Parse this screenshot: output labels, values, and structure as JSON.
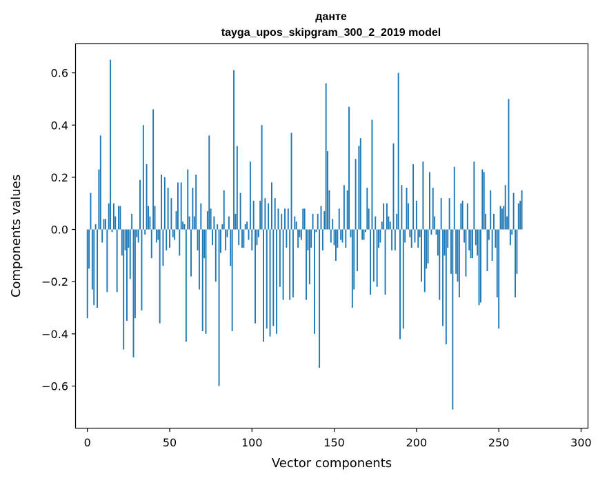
{
  "chart_data": {
    "type": "bar",
    "title": "данте",
    "subtitle": "tayga_upos_skipgram_300_2_2019 model",
    "xlabel": "Vector components",
    "ylabel": "Components values",
    "xlim": [
      -7,
      304
    ],
    "ylim": [
      -0.76,
      0.71
    ],
    "xticks": [
      0,
      50,
      100,
      150,
      200,
      250,
      300
    ],
    "xtick_labels": [
      "0",
      "50",
      "100",
      "150",
      "200",
      "250",
      "300"
    ],
    "yticks": [
      -0.6,
      -0.4,
      -0.2,
      0.0,
      0.2,
      0.4,
      0.6
    ],
    "ytick_labels": [
      "−0.6",
      "−0.4",
      "−0.2",
      "0.0",
      "0.2",
      "0.4",
      "0.6"
    ],
    "grid": false,
    "bar_color": "#1f77b4",
    "values": [
      -0.34,
      -0.15,
      0.14,
      -0.23,
      -0.29,
      0.02,
      -0.3,
      0.23,
      0.36,
      -0.05,
      0.04,
      0.04,
      -0.24,
      0.1,
      0.65,
      -0.01,
      0.1,
      0.05,
      -0.24,
      0.09,
      0.09,
      -0.1,
      -0.46,
      -0.08,
      -0.35,
      -0.07,
      -0.19,
      0.06,
      -0.49,
      -0.34,
      -0.03,
      -0.05,
      0.19,
      -0.31,
      0.4,
      -0.02,
      0.25,
      0.09,
      0.05,
      -0.11,
      0.46,
      0.09,
      -0.05,
      -0.04,
      -0.36,
      0.21,
      -0.14,
      0.2,
      -0.08,
      0.16,
      -0.07,
      0.12,
      -0.03,
      -0.04,
      0.07,
      0.18,
      -0.1,
      0.18,
      0.03,
      0.02,
      -0.43,
      0.23,
      0.05,
      -0.18,
      0.16,
      0.05,
      0.21,
      -0.08,
      -0.23,
      0.1,
      -0.39,
      -0.11,
      -0.4,
      0.07,
      0.36,
      0.08,
      -0.06,
      0.05,
      -0.2,
      0.02,
      -0.6,
      -0.09,
      0.02,
      0.15,
      -0.08,
      -0.03,
      0.05,
      -0.14,
      -0.39,
      0.61,
      0.06,
      0.32,
      -0.06,
      0.14,
      -0.07,
      -0.07,
      0.02,
      0.03,
      -0.04,
      0.26,
      -0.08,
      0.11,
      -0.36,
      -0.06,
      -0.03,
      0.11,
      0.4,
      -0.43,
      0.12,
      -0.38,
      0.1,
      -0.41,
      0.18,
      -0.37,
      0.12,
      -0.4,
      0.08,
      -0.22,
      0.06,
      -0.27,
      0.08,
      -0.07,
      0.08,
      -0.27,
      0.37,
      -0.26,
      0.05,
      0.03,
      -0.07,
      -0.03,
      -0.04,
      0.08,
      0.08,
      -0.27,
      -0.08,
      -0.21,
      -0.07,
      0.06,
      -0.4,
      -0.01,
      0.06,
      -0.53,
      0.09,
      -0.08,
      0.07,
      0.56,
      0.3,
      0.15,
      -0.05,
      0.04,
      -0.06,
      -0.12,
      -0.07,
      0.08,
      -0.04,
      -0.05,
      0.17,
      -0.07,
      0.15,
      0.47,
      -0.03,
      -0.3,
      -0.23,
      0.27,
      -0.16,
      0.32,
      0.35,
      -0.04,
      -0.04,
      -0.01,
      0.16,
      0.08,
      -0.25,
      0.42,
      -0.2,
      0.05,
      -0.22,
      -0.07,
      -0.05,
      0.03,
      0.1,
      -0.25,
      0.1,
      0.05,
      0.03,
      -0.08,
      0.33,
      -0.08,
      0.06,
      0.6,
      -0.42,
      0.17,
      -0.38,
      -0.05,
      0.16,
      0.1,
      -0.03,
      -0.07,
      0.25,
      -0.05,
      0.11,
      -0.07,
      -0.03,
      -0.2,
      0.26,
      -0.24,
      -0.15,
      -0.13,
      0.22,
      -0.02,
      0.16,
      0.05,
      -0.02,
      -0.1,
      -0.27,
      0.12,
      -0.37,
      -0.1,
      -0.44,
      -0.07,
      0.12,
      -0.17,
      -0.69,
      0.24,
      -0.17,
      -0.2,
      -0.26,
      0.1,
      0.11,
      -0.05,
      -0.18,
      0.1,
      -0.08,
      -0.11,
      -0.11,
      0.26,
      -0.06,
      -0.1,
      -0.29,
      -0.28,
      0.23,
      0.22,
      0.06,
      -0.16,
      -0.04,
      0.15,
      -0.12,
      0.06,
      -0.07,
      -0.26,
      -0.38,
      0.09,
      0.08,
      0.09,
      0.17,
      0.05,
      0.5,
      -0.06,
      -0.02,
      0.14,
      -0.26,
      -0.17,
      0.1,
      0.11,
      0.15
    ]
  }
}
